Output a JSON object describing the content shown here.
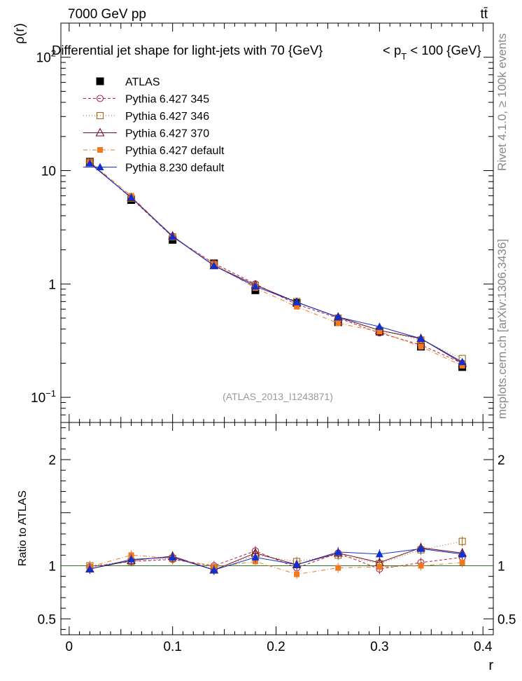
{
  "header": {
    "energy_label": "7000 GeV pp",
    "process_label": "tt̄"
  },
  "side_labels": {
    "rivet": "Rivet 4.1.0, ≥ 100k events",
    "mcplots": "mcplots.cern.ch [arXiv:1306.3436]"
  },
  "chart_data": [
    {
      "type": "line",
      "title": "Differential jet shape for light-jets with 70 {GeV}",
      "title_right_prefix": "< p",
      "title_right_sub": "T",
      "title_right_suffix": "< 100 {GeV}",
      "ylabel": "ρ(r)",
      "xlabel": "r",
      "yscale": "log",
      "ylim": [
        0.06,
        200
      ],
      "xlim": [
        -0.008,
        0.41
      ],
      "y_tick_labels": [
        {
          "value": 0.1,
          "base": "10",
          "exp": "−1"
        },
        {
          "value": 1,
          "base": "1",
          "exp": ""
        },
        {
          "value": 10,
          "base": "10",
          "exp": ""
        },
        {
          "value": 100,
          "base": "10",
          "exp": "2"
        }
      ],
      "watermark": "(ATLAS_2013_I1243871)",
      "x": [
        0.02,
        0.06,
        0.1,
        0.14,
        0.18,
        0.22,
        0.26,
        0.3,
        0.34,
        0.38
      ],
      "series": [
        {
          "name": "ATLAS",
          "color": "#000000",
          "marker": "filled-square",
          "line": "none",
          "values": [
            12.0,
            5.5,
            2.45,
            1.52,
            0.88,
            0.68,
            0.46,
            0.38,
            0.28,
            0.185
          ]
        },
        {
          "name": "Pythia 6.427 345",
          "color": "#b02448",
          "marker": "open-circle",
          "line": "dashed",
          "values": [
            11.9,
            5.7,
            2.6,
            1.52,
            1.0,
            0.66,
            0.5,
            0.37,
            0.29,
            0.2
          ]
        },
        {
          "name": "Pythia 6.427 346",
          "color": "#a06818",
          "marker": "open-square",
          "line": "dotted",
          "values": [
            12.0,
            5.7,
            2.6,
            1.48,
            0.97,
            0.7,
            0.5,
            0.39,
            0.32,
            0.22
          ]
        },
        {
          "name": "Pythia 6.427 370",
          "color": "#701020",
          "marker": "open-triangle",
          "line": "solid",
          "values": [
            11.7,
            5.8,
            2.65,
            1.45,
            0.98,
            0.69,
            0.51,
            0.39,
            0.33,
            0.2
          ]
        },
        {
          "name": "Pythia 6.427 default",
          "color": "#f07820",
          "marker": "filled-small-square",
          "line": "dashdot",
          "values": [
            11.9,
            6.0,
            2.6,
            1.5,
            0.92,
            0.63,
            0.45,
            0.38,
            0.28,
            0.19
          ]
        },
        {
          "name": "Pythia 8.230 default",
          "color": "#1030d0",
          "marker": "filled-triangle",
          "line": "solid",
          "values": [
            11.6,
            5.8,
            2.62,
            1.45,
            0.95,
            0.69,
            0.51,
            0.42,
            0.33,
            0.205
          ]
        }
      ]
    },
    {
      "type": "line",
      "ylabel": "Ratio to ATLAS",
      "xlabel": "r",
      "ylim": [
        0.35,
        2.35
      ],
      "xlim": [
        -0.008,
        0.41
      ],
      "y_tick_labels": [
        "0.5",
        "1",
        "2"
      ],
      "y_tick_values": [
        0.5,
        1,
        2
      ],
      "x_tick_labels": [
        "0",
        "0.1",
        "0.2",
        "0.3",
        "0.4"
      ],
      "x_tick_values": [
        0,
        0.1,
        0.2,
        0.3,
        0.4
      ],
      "reference_line": 1,
      "x": [
        0.02,
        0.06,
        0.1,
        0.14,
        0.18,
        0.22,
        0.26,
        0.3,
        0.34,
        0.38
      ],
      "series": [
        {
          "name": "Pythia 6.427 345",
          "values": [
            0.99,
            1.04,
            1.06,
            1.0,
            1.14,
            0.98,
            1.12,
            0.97,
            1.03,
            1.08
          ]
        },
        {
          "name": "Pythia 6.427 346",
          "values": [
            1.0,
            1.04,
            1.07,
            0.97,
            1.1,
            1.04,
            1.1,
            1.02,
            1.15,
            1.23
          ]
        },
        {
          "name": "Pythia 6.427 370",
          "values": [
            0.97,
            1.05,
            1.09,
            0.96,
            1.12,
            1.01,
            1.12,
            1.03,
            1.17,
            1.12
          ]
        },
        {
          "name": "Pythia 6.427 default",
          "values": [
            0.99,
            1.1,
            1.07,
            0.99,
            1.04,
            0.92,
            0.98,
            0.99,
            1.0,
            1.03
          ]
        },
        {
          "name": "Pythia 8.230 default",
          "values": [
            0.97,
            1.06,
            1.08,
            0.96,
            1.08,
            1.01,
            1.13,
            1.11,
            1.16,
            1.11
          ]
        }
      ]
    }
  ]
}
